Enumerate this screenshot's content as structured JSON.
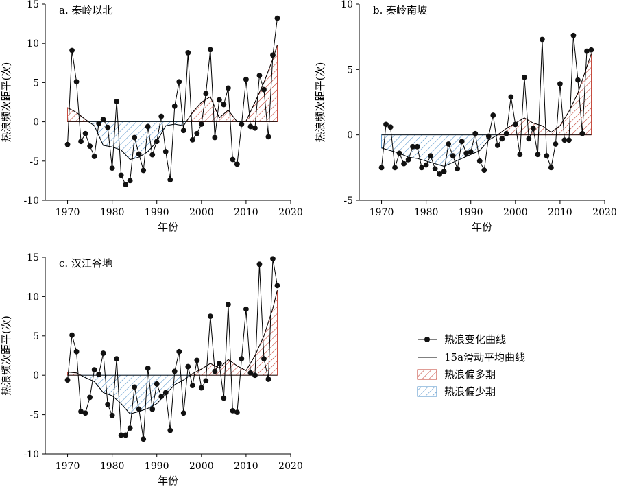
{
  "legend": {
    "items": [
      {
        "key": "obs",
        "label": "热浪变化曲线"
      },
      {
        "key": "smooth",
        "label": "15a滑动平均曲线"
      },
      {
        "key": "more",
        "label": "热浪偏多期"
      },
      {
        "key": "less",
        "label": "热浪偏少期"
      }
    ]
  },
  "colors": {
    "more": "#c0392b",
    "less": "#4a8cc7",
    "line": "#000000"
  },
  "chart_data": [
    {
      "type": "line",
      "id": "a",
      "title": "a. 秦岭以北",
      "xlabel": "年份",
      "ylabel": "热浪频次距平(次)",
      "xlim": [
        1965,
        2020
      ],
      "ylim": [
        -10,
        15
      ],
      "xticks": [
        1970,
        1980,
        1990,
        2000,
        2010,
        2020
      ],
      "yticks": [
        -10,
        -5,
        0,
        5,
        10,
        15
      ],
      "grid": false,
      "series": [
        {
          "name": "热浪变化曲线",
          "x": [
            1970,
            1971,
            1972,
            1973,
            1974,
            1975,
            1976,
            1977,
            1978,
            1979,
            1980,
            1981,
            1982,
            1983,
            1984,
            1985,
            1986,
            1987,
            1988,
            1989,
            1990,
            1991,
            1992,
            1993,
            1994,
            1995,
            1996,
            1997,
            1998,
            1999,
            2000,
            2001,
            2002,
            2003,
            2004,
            2005,
            2006,
            2007,
            2008,
            2009,
            2010,
            2011,
            2012,
            2013,
            2014,
            2015,
            2016,
            2017
          ],
          "values": [
            -2.9,
            9.1,
            5.1,
            -2.5,
            -1.5,
            -3.1,
            -4.4,
            -0.2,
            0.3,
            -0.7,
            -5.9,
            2.6,
            -6.8,
            -8.0,
            -7.5,
            -2.0,
            -4.1,
            -6.2,
            -0.6,
            -4.2,
            -2.5,
            0.7,
            -3.8,
            -7.4,
            2.0,
            5.1,
            -1.1,
            8.8,
            -2.3,
            -1.5,
            -0.3,
            3.6,
            9.2,
            -2.0,
            2.8,
            2.2,
            4.3,
            -4.8,
            -5.4,
            -0.3,
            5.4,
            -0.6,
            -0.8,
            5.9,
            4.1,
            -1.9,
            8.5,
            13.2
          ]
        },
        {
          "name": "15a滑动平均曲线",
          "x": [
            1970,
            1972,
            1974,
            1976,
            1978,
            1980,
            1982,
            1984,
            1986,
            1988,
            1990,
            1992,
            1994,
            1996,
            1998,
            2000,
            2002,
            2004,
            2006,
            2008,
            2010,
            2012,
            2014,
            2016,
            2017
          ],
          "values": [
            1.8,
            1.2,
            0.3,
            -0.5,
            -3.0,
            -3.2,
            -3.6,
            -4.8,
            -4.5,
            -3.8,
            -2.5,
            -0.5,
            -0.3,
            -0.5,
            1.2,
            2.5,
            3.2,
            0.5,
            1.5,
            0.0,
            0.1,
            2.5,
            5.0,
            8.0,
            9.8
          ]
        }
      ]
    },
    {
      "type": "line",
      "id": "b",
      "title": "b. 秦岭南坡",
      "xlabel": "年份",
      "ylabel": "热浪频次距平(次)",
      "xlim": [
        1965,
        2020
      ],
      "ylim": [
        -5,
        10
      ],
      "xticks": [
        1970,
        1980,
        1990,
        2000,
        2010,
        2020
      ],
      "yticks": [
        -5,
        0,
        5,
        10
      ],
      "grid": false,
      "series": [
        {
          "name": "热浪变化曲线",
          "x": [
            1970,
            1971,
            1972,
            1973,
            1974,
            1975,
            1976,
            1977,
            1978,
            1979,
            1980,
            1981,
            1982,
            1983,
            1984,
            1985,
            1986,
            1987,
            1988,
            1989,
            1990,
            1991,
            1992,
            1993,
            1994,
            1995,
            1996,
            1997,
            1998,
            1999,
            2000,
            2001,
            2002,
            2003,
            2004,
            2005,
            2006,
            2007,
            2008,
            2009,
            2010,
            2011,
            2012,
            2013,
            2014,
            2015,
            2016,
            2017
          ],
          "values": [
            -2.5,
            0.8,
            0.6,
            -2.5,
            -1.4,
            -2.2,
            -1.9,
            -0.9,
            -0.9,
            -2.5,
            -2.3,
            -1.6,
            -2.6,
            -3.0,
            -2.8,
            -0.7,
            -1.6,
            -2.6,
            -0.5,
            -1.4,
            -1.3,
            0.1,
            -2.0,
            -2.7,
            -0.1,
            1.5,
            -0.8,
            -0.3,
            0.1,
            2.9,
            0.8,
            -1.5,
            4.4,
            -0.3,
            0.5,
            -1.5,
            7.3,
            -1.6,
            -2.5,
            -0.7,
            3.9,
            -0.4,
            -0.4,
            7.6,
            4.2,
            0.1,
            6.4,
            6.5
          ]
        },
        {
          "name": "15a滑动平均曲线",
          "x": [
            1970,
            1972,
            1974,
            1976,
            1978,
            1980,
            1982,
            1984,
            1986,
            1988,
            1990,
            1992,
            1994,
            1996,
            1998,
            2000,
            2002,
            2004,
            2006,
            2008,
            2010,
            2012,
            2014,
            2016,
            2017
          ],
          "values": [
            -1.0,
            -1.2,
            -1.4,
            -1.7,
            -1.8,
            -2.0,
            -2.2,
            -2.4,
            -2.1,
            -1.8,
            -1.5,
            -1.2,
            -0.4,
            0.0,
            0.5,
            0.9,
            1.3,
            0.9,
            0.7,
            0.2,
            0.7,
            1.8,
            3.2,
            5.2,
            6.2
          ]
        }
      ]
    },
    {
      "type": "line",
      "id": "c",
      "title": "c. 汉江谷地",
      "xlabel": "年份",
      "ylabel": "热浪频次距平(次)",
      "xlim": [
        1965,
        2020
      ],
      "ylim": [
        -10,
        15
      ],
      "xticks": [
        1970,
        1980,
        1990,
        2000,
        2010,
        2020
      ],
      "yticks": [
        -10,
        -5,
        0,
        5,
        10,
        15
      ],
      "grid": false,
      "series": [
        {
          "name": "热浪变化曲线",
          "x": [
            1970,
            1971,
            1972,
            1973,
            1974,
            1975,
            1976,
            1977,
            1978,
            1979,
            1980,
            1981,
            1982,
            1983,
            1984,
            1985,
            1986,
            1987,
            1988,
            1989,
            1990,
            1991,
            1992,
            1993,
            1994,
            1995,
            1996,
            1997,
            1998,
            1999,
            2000,
            2001,
            2002,
            2003,
            2004,
            2005,
            2006,
            2007,
            2008,
            2009,
            2010,
            2011,
            2012,
            2013,
            2014,
            2015,
            2016,
            2017
          ],
          "values": [
            -0.6,
            5.1,
            3.0,
            -4.6,
            -4.8,
            -2.8,
            0.7,
            0.1,
            2.8,
            -3.7,
            -5.1,
            2.1,
            -7.6,
            -7.6,
            -6.7,
            -1.5,
            -4.3,
            -8.1,
            0.9,
            -4.3,
            -1.1,
            -2.7,
            -2.2,
            -7.0,
            0.5,
            3.0,
            -4.8,
            1.1,
            -1.3,
            1.9,
            -1.6,
            -0.7,
            7.5,
            0.5,
            1.5,
            -2.9,
            9.0,
            -4.5,
            -4.7,
            2.1,
            8.4,
            0.3,
            0.0,
            14.1,
            2.1,
            -0.5,
            14.8,
            11.4
          ]
        },
        {
          "name": "15a滑动平均曲线",
          "x": [
            1970,
            1972,
            1974,
            1976,
            1978,
            1980,
            1982,
            1984,
            1986,
            1988,
            1990,
            1992,
            1994,
            1996,
            1998,
            2000,
            2002,
            2004,
            2006,
            2008,
            2010,
            2012,
            2014,
            2016,
            2017
          ],
          "values": [
            0.4,
            0.3,
            -0.3,
            -0.8,
            -2.2,
            -2.6,
            -3.6,
            -4.9,
            -4.6,
            -4.2,
            -3.6,
            -2.4,
            -1.2,
            -0.6,
            0.2,
            0.8,
            1.5,
            0.9,
            2.0,
            1.2,
            0.6,
            2.5,
            5.0,
            8.5,
            10.8
          ]
        }
      ]
    }
  ]
}
